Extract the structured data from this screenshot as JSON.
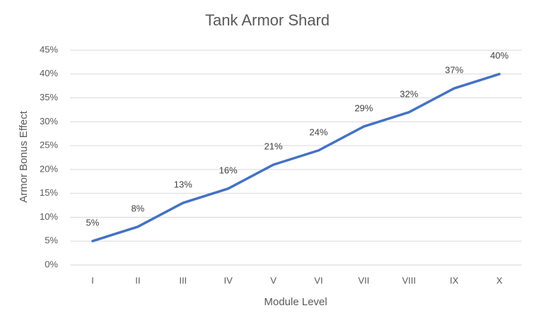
{
  "chart_data": {
    "type": "line",
    "title": "Tank Armor Shard",
    "x_label": "Module Level",
    "y_label": "Armor Bonus Effect",
    "categories": [
      "I",
      "II",
      "III",
      "IV",
      "V",
      "VI",
      "VII",
      "VIII",
      "IX",
      "X"
    ],
    "series": [
      {
        "color": "#4472c4",
        "values": [
          5,
          8,
          13,
          16,
          21,
          24,
          29,
          32,
          37,
          40
        ],
        "value_labels": [
          "5%",
          "8%",
          "13%",
          "16%",
          "21%",
          "24%",
          "29%",
          "32%",
          "37%",
          "40%"
        ]
      }
    ],
    "ylim": [
      0,
      45
    ],
    "yticks": [
      {
        "value": 0,
        "label": "0%"
      },
      {
        "value": 5,
        "label": "5%"
      },
      {
        "value": 10,
        "label": "10%"
      },
      {
        "value": 15,
        "label": "15%"
      },
      {
        "value": 20,
        "label": "20%"
      },
      {
        "value": 25,
        "label": "25%"
      },
      {
        "value": 30,
        "label": "30%"
      },
      {
        "value": 35,
        "label": "35%"
      },
      {
        "value": 40,
        "label": "40%"
      },
      {
        "value": 45,
        "label": "45%"
      }
    ],
    "grid": true
  }
}
